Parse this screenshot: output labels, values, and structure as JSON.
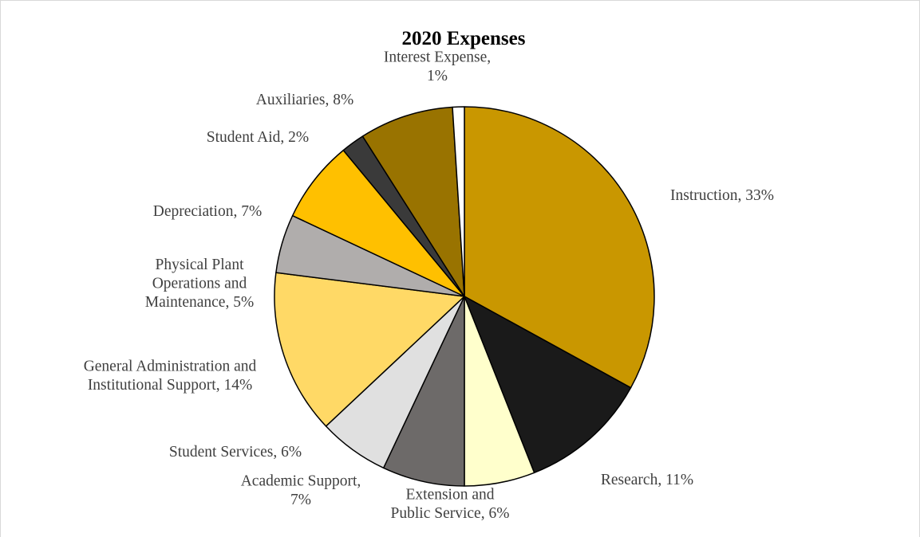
{
  "chart_data": {
    "type": "pie",
    "title": "2020 Expenses",
    "start_angle_deg": 0,
    "direction": "clockwise",
    "slices": [
      {
        "label": "Instruction, 33%",
        "name": "Instruction",
        "value": 33,
        "color": "#c99700"
      },
      {
        "label": "Research, 11%",
        "name": "Research",
        "value": 11,
        "color": "#1a1a1a"
      },
      {
        "label": "Extension and Public Service, 6%",
        "name": "Extension and Public Service",
        "value": 6,
        "color": "#ffffcc"
      },
      {
        "label": "Academic Support, 7%",
        "name": "Academic Support",
        "value": 7,
        "color": "#6d6a69"
      },
      {
        "label": "Student Services, 6%",
        "name": "Student Services",
        "value": 6,
        "color": "#e0e0e0"
      },
      {
        "label": "General Administration and Institutional Support, 14%",
        "name": "General Administration and Institutional Support",
        "value": 14,
        "color": "#ffd966"
      },
      {
        "label": "Physical Plant Operations and Maintenance, 5%",
        "name": "Physical Plant Operations and Maintenance",
        "value": 5,
        "color": "#b0adac"
      },
      {
        "label": "Depreciation, 7%",
        "name": "Depreciation",
        "value": 7,
        "color": "#ffc000"
      },
      {
        "label": "Student Aid, 2%",
        "name": "Student Aid",
        "value": 2,
        "color": "#3a3a3a"
      },
      {
        "label": "Auxiliaries, 8%",
        "name": "Auxiliaries",
        "value": 8,
        "color": "#997300"
      },
      {
        "label": "Interest Expense, 1%",
        "name": "Interest Expense",
        "value": 1,
        "color": "#ffffff"
      }
    ],
    "legend": "none"
  }
}
